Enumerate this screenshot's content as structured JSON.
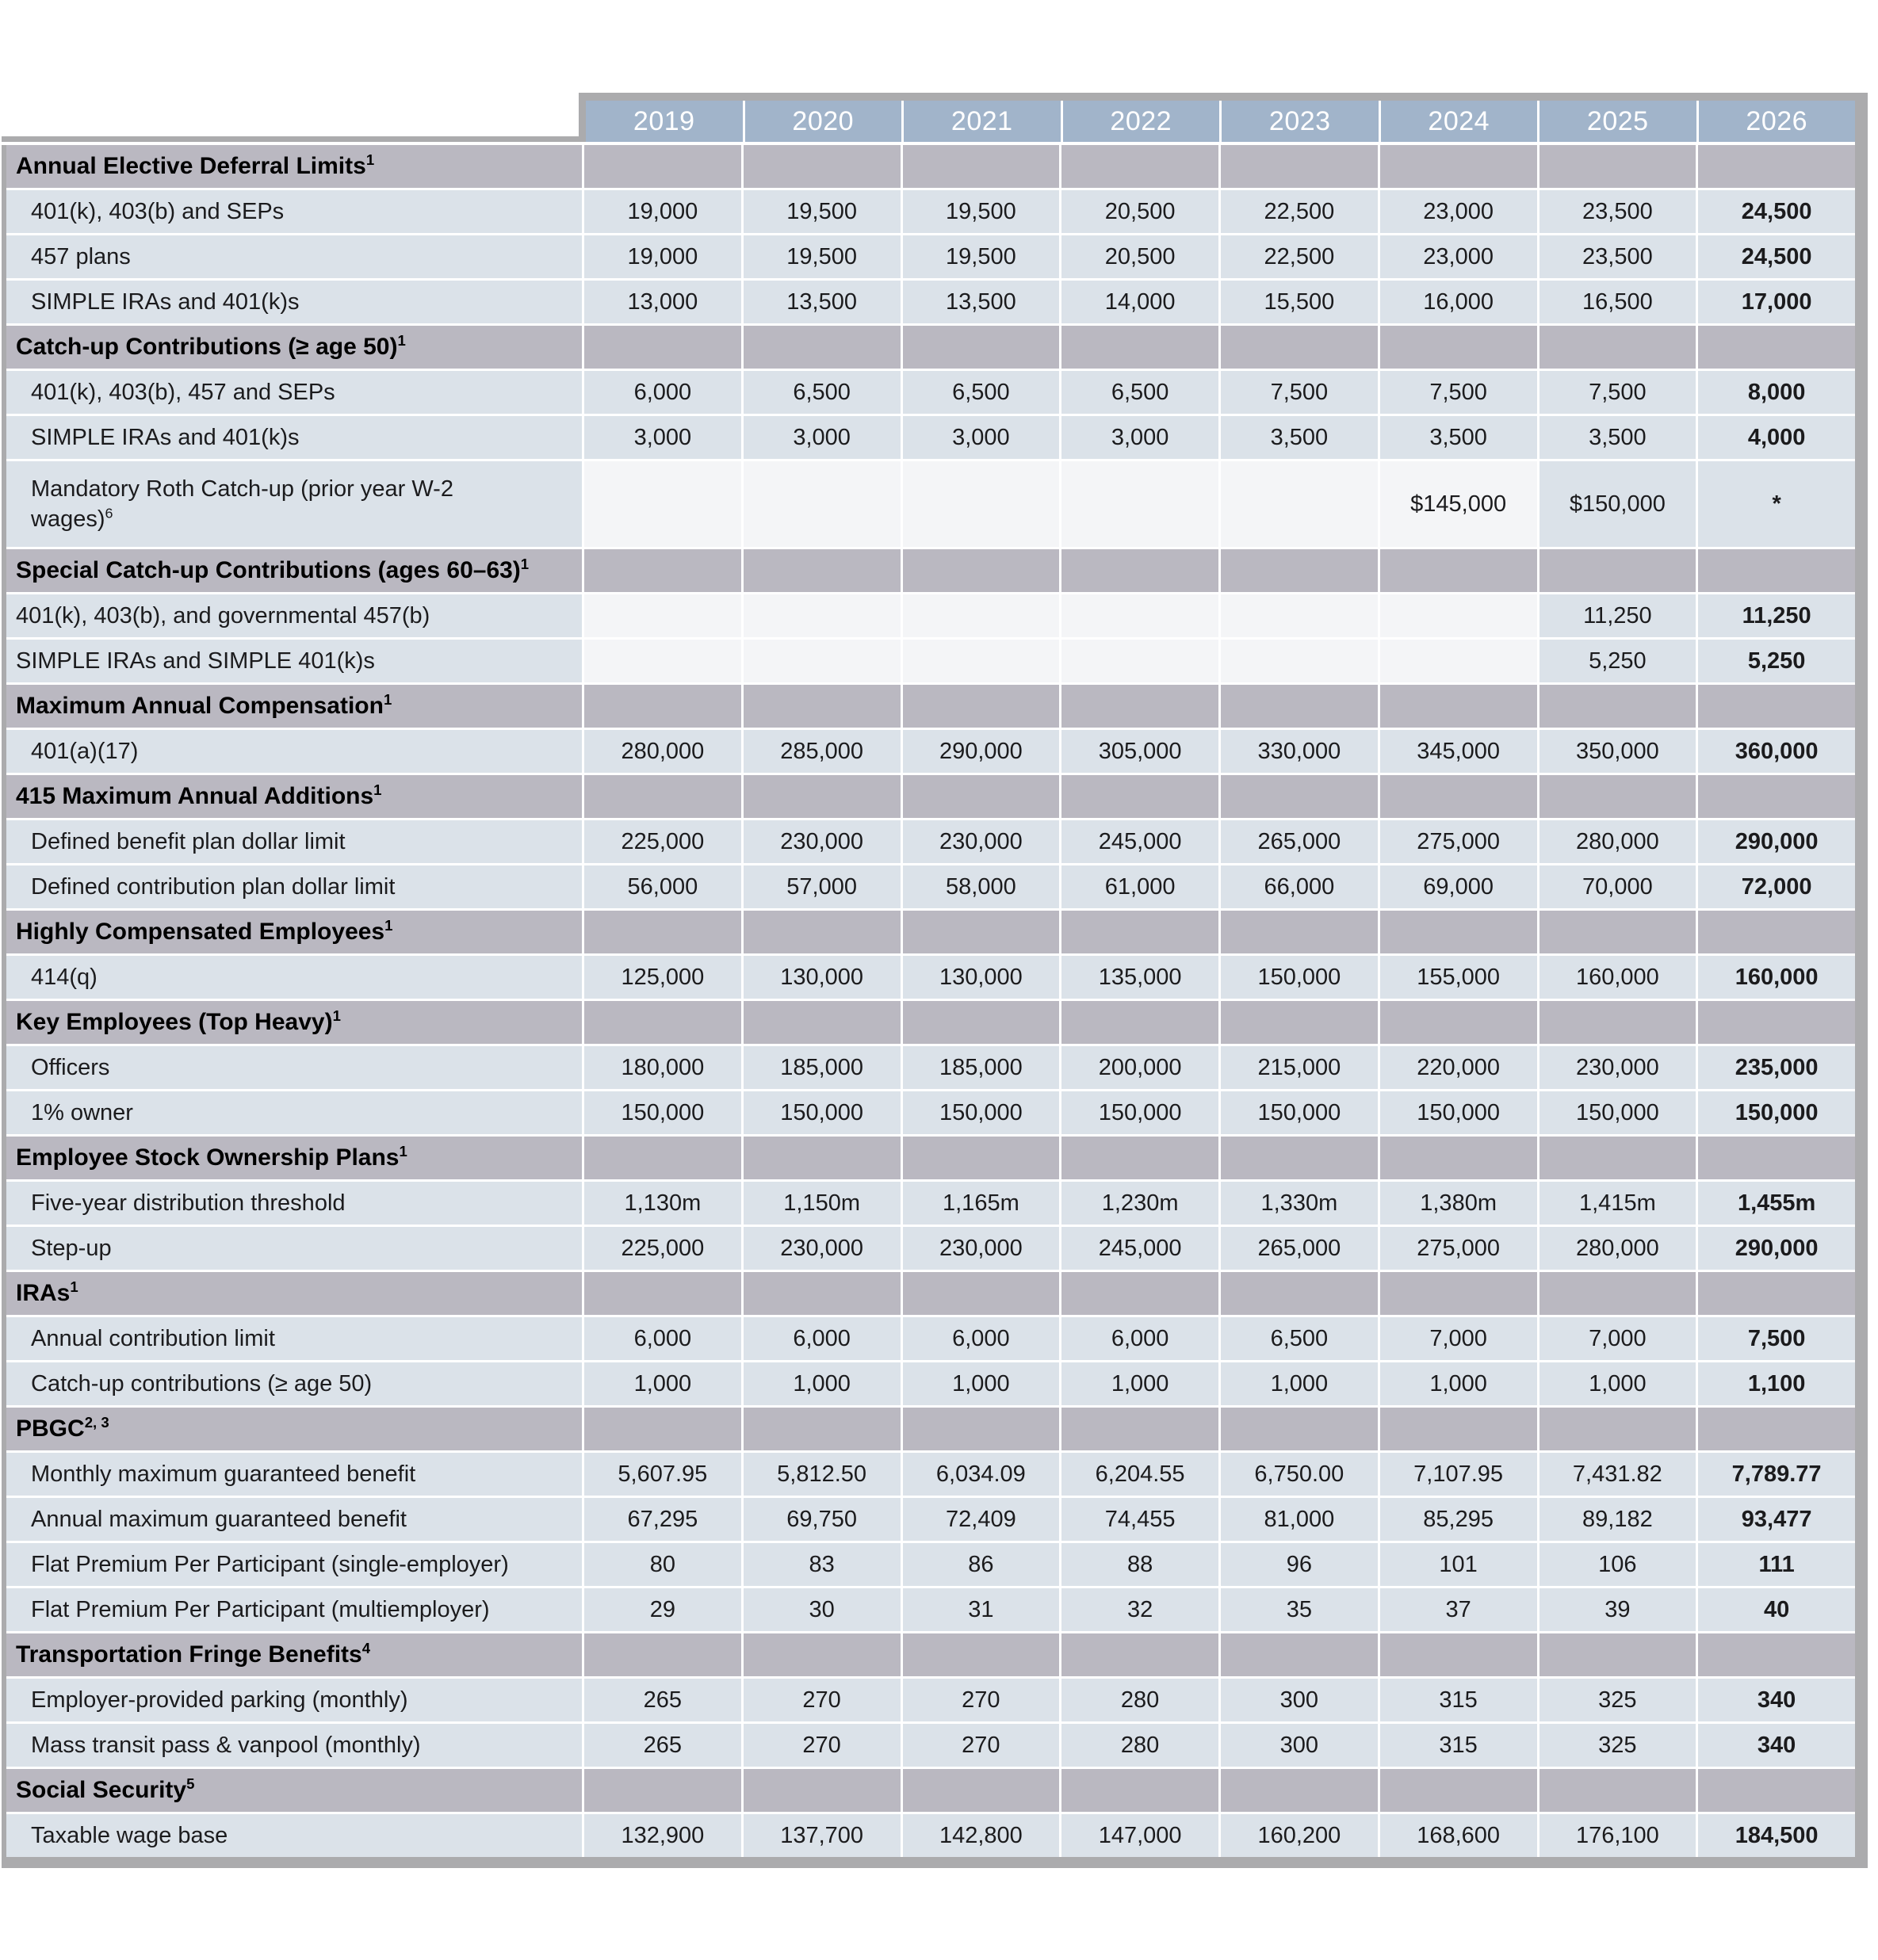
{
  "table": {
    "title": "Retirement plan limits table",
    "years": [
      "2019",
      "2020",
      "2021",
      "2022",
      "2023",
      "2024",
      "2025",
      "2026"
    ],
    "colors": {
      "header_blue": "#a1b4ca",
      "header_text": "#ffffff",
      "section_gray": "#bab8c1",
      "row_bg": "#dbe2e9",
      "empty_cell_bg": "#f4f5f7",
      "border_gray": "#ababad",
      "body_text": "#1b1b1d"
    },
    "rows": [
      {
        "type": "section",
        "label": "Annual Elective Deferral Limits",
        "sup": "1"
      },
      {
        "type": "data",
        "label": "401(k), 403(b) and SEPs",
        "indent": true,
        "values": [
          "19,000",
          "19,500",
          "19,500",
          "20,500",
          "22,500",
          "23,000",
          "23,500",
          "24,500"
        ]
      },
      {
        "type": "data",
        "label": "457 plans",
        "indent": true,
        "values": [
          "19,000",
          "19,500",
          "19,500",
          "20,500",
          "22,500",
          "23,000",
          "23,500",
          "24,500"
        ]
      },
      {
        "type": "data",
        "label": "SIMPLE IRAs and 401(k)s",
        "indent": true,
        "values": [
          "13,000",
          "13,500",
          "13,500",
          "14,000",
          "15,500",
          "16,000",
          "16,500",
          "17,000"
        ]
      },
      {
        "type": "section",
        "label": "Catch-up Contributions (≥ age 50)",
        "sup": "1"
      },
      {
        "type": "data",
        "label": "401(k), 403(b), 457 and SEPs",
        "indent": true,
        "values": [
          "6,000",
          "6,500",
          "6,500",
          "6,500",
          "7,500",
          "7,500",
          "7,500",
          "8,000"
        ]
      },
      {
        "type": "data",
        "label": "SIMPLE IRAs and 401(k)s",
        "indent": true,
        "values": [
          "3,000",
          "3,000",
          "3,000",
          "3,000",
          "3,500",
          "3,500",
          "3,500",
          "4,000"
        ]
      },
      {
        "type": "data",
        "label": "Mandatory Roth Catch-up (prior year W-2 wages)",
        "sup": "6",
        "indent": true,
        "tall": true,
        "white_leading": 6,
        "values": [
          "",
          "",
          "",
          "",
          "",
          "$145,000",
          "$150,000",
          "*"
        ]
      },
      {
        "type": "section",
        "label": "Special Catch-up Contributions (ages 60–63)",
        "sup": "1"
      },
      {
        "type": "data",
        "label": "401(k), 403(b), and governmental 457(b)",
        "indent": false,
        "white_leading": 6,
        "values": [
          "",
          "",
          "",
          "",
          "",
          "",
          "11,250",
          "11,250"
        ]
      },
      {
        "type": "data",
        "label": "SIMPLE IRAs and SIMPLE 401(k)s",
        "indent": false,
        "white_leading": 6,
        "values": [
          "",
          "",
          "",
          "",
          "",
          "",
          "5,250",
          "5,250"
        ]
      },
      {
        "type": "section",
        "label": "Maximum Annual Compensation",
        "sup": "1"
      },
      {
        "type": "data",
        "label": "401(a)(17)",
        "indent": true,
        "values": [
          "280,000",
          "285,000",
          "290,000",
          "305,000",
          "330,000",
          "345,000",
          "350,000",
          "360,000"
        ]
      },
      {
        "type": "section",
        "label": "415 Maximum Annual Additions",
        "sup": "1"
      },
      {
        "type": "data",
        "label": "Defined benefit plan dollar limit",
        "indent": true,
        "values": [
          "225,000",
          "230,000",
          "230,000",
          "245,000",
          "265,000",
          "275,000",
          "280,000",
          "290,000"
        ]
      },
      {
        "type": "data",
        "label": "Defined contribution plan dollar limit",
        "indent": true,
        "values": [
          "56,000",
          "57,000",
          "58,000",
          "61,000",
          "66,000",
          "69,000",
          "70,000",
          "72,000"
        ]
      },
      {
        "type": "section",
        "label": "Highly Compensated Employees",
        "sup": "1"
      },
      {
        "type": "data",
        "label": "414(q)",
        "indent": true,
        "values": [
          "125,000",
          "130,000",
          "130,000",
          "135,000",
          "150,000",
          "155,000",
          "160,000",
          "160,000"
        ]
      },
      {
        "type": "section",
        "label": "Key Employees (Top Heavy)",
        "sup": "1"
      },
      {
        "type": "data",
        "label": "Officers",
        "indent": true,
        "values": [
          "180,000",
          "185,000",
          "185,000",
          "200,000",
          "215,000",
          "220,000",
          "230,000",
          "235,000"
        ]
      },
      {
        "type": "data",
        "label": "1% owner",
        "indent": true,
        "values": [
          "150,000",
          "150,000",
          "150,000",
          "150,000",
          "150,000",
          "150,000",
          "150,000",
          "150,000"
        ]
      },
      {
        "type": "section",
        "label": "Employee Stock Ownership Plans",
        "sup": "1"
      },
      {
        "type": "data",
        "label": "Five-year distribution threshold",
        "indent": true,
        "values": [
          "1,130m",
          "1,150m",
          "1,165m",
          "1,230m",
          "1,330m",
          "1,380m",
          "1,415m",
          "1,455m"
        ]
      },
      {
        "type": "data",
        "label": "Step-up",
        "indent": true,
        "values": [
          "225,000",
          "230,000",
          "230,000",
          "245,000",
          "265,000",
          "275,000",
          "280,000",
          "290,000"
        ]
      },
      {
        "type": "section",
        "label": "IRAs",
        "sup": "1"
      },
      {
        "type": "data",
        "label": "Annual contribution limit",
        "indent": true,
        "values": [
          "6,000",
          "6,000",
          "6,000",
          "6,000",
          "6,500",
          "7,000",
          "7,000",
          "7,500"
        ]
      },
      {
        "type": "data",
        "label": "Catch-up contributions (≥ age 50)",
        "indent": true,
        "values": [
          "1,000",
          "1,000",
          "1,000",
          "1,000",
          "1,000",
          "1,000",
          "1,000",
          "1,100"
        ]
      },
      {
        "type": "section",
        "label": "PBGC",
        "sup": "2, 3"
      },
      {
        "type": "data",
        "label": "Monthly maximum guaranteed benefit",
        "indent": true,
        "values": [
          "5,607.95",
          "5,812.50",
          "6,034.09",
          "6,204.55",
          "6,750.00",
          "7,107.95",
          "7,431.82",
          "7,789.77"
        ]
      },
      {
        "type": "data",
        "label": "Annual maximum guaranteed benefit",
        "indent": true,
        "values": [
          "67,295",
          "69,750",
          "72,409",
          "74,455",
          "81,000",
          "85,295",
          "89,182",
          "93,477"
        ]
      },
      {
        "type": "data",
        "label": "Flat Premium Per Participant (single-employer)",
        "indent": true,
        "values": [
          "80",
          "83",
          "86",
          "88",
          "96",
          "101",
          "106",
          "111"
        ]
      },
      {
        "type": "data",
        "label": "Flat Premium Per Participant (multiemployer)",
        "indent": true,
        "values": [
          "29",
          "30",
          "31",
          "32",
          "35",
          "37",
          "39",
          "40"
        ]
      },
      {
        "type": "section",
        "label": "Transportation Fringe Benefits",
        "sup": "4"
      },
      {
        "type": "data",
        "label": "Employer-provided parking (monthly)",
        "indent": true,
        "values": [
          "265",
          "270",
          "270",
          "280",
          "300",
          "315",
          "325",
          "340"
        ]
      },
      {
        "type": "data",
        "label": "Mass transit pass & vanpool (monthly)",
        "indent": true,
        "values": [
          "265",
          "270",
          "270",
          "280",
          "300",
          "315",
          "325",
          "340"
        ]
      },
      {
        "type": "section",
        "label": "Social Security",
        "sup": "5"
      },
      {
        "type": "data",
        "label": "Taxable wage base",
        "indent": true,
        "values": [
          "132,900",
          "137,700",
          "142,800",
          "147,000",
          "160,200",
          "168,600",
          "176,100",
          "184,500"
        ]
      }
    ]
  }
}
